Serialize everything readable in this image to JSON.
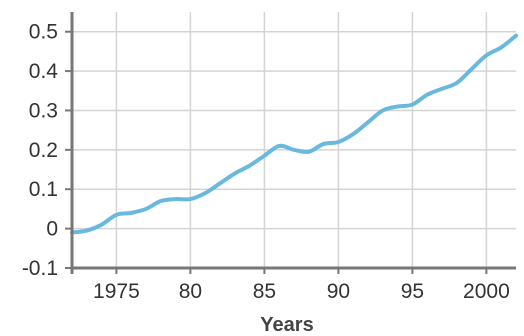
{
  "chart_data": {
    "type": "line",
    "title": "",
    "xlabel": "Years",
    "ylabel": "",
    "xlim": [
      1972,
      2002
    ],
    "ylim": [
      -0.1,
      0.55
    ],
    "grid": true,
    "x_ticks": [
      {
        "value": 1975,
        "label": "1975"
      },
      {
        "value": 1980,
        "label": "80"
      },
      {
        "value": 1985,
        "label": "85"
      },
      {
        "value": 1990,
        "label": "90"
      },
      {
        "value": 1995,
        "label": "95"
      },
      {
        "value": 2000,
        "label": "2000"
      }
    ],
    "y_ticks": [
      {
        "value": -0.1,
        "label": "-0.1"
      },
      {
        "value": 0,
        "label": "0"
      },
      {
        "value": 0.1,
        "label": "0.1"
      },
      {
        "value": 0.2,
        "label": "0.2"
      },
      {
        "value": 0.3,
        "label": "0.3"
      },
      {
        "value": 0.4,
        "label": "0.4"
      },
      {
        "value": 0.5,
        "label": "0.5"
      }
    ],
    "series": [
      {
        "color": "#69b8df",
        "x": [
          1972,
          1973,
          1974,
          1975,
          1976,
          1977,
          1978,
          1979,
          1980,
          1981,
          1982,
          1983,
          1984,
          1985,
          1986,
          1987,
          1988,
          1989,
          1990,
          1991,
          1992,
          1993,
          1994,
          1995,
          1996,
          1997,
          1998,
          1999,
          2000,
          2001,
          2002
        ],
        "y": [
          -0.01,
          -0.005,
          0.01,
          0.035,
          0.04,
          0.05,
          0.07,
          0.075,
          0.075,
          0.09,
          0.115,
          0.14,
          0.16,
          0.185,
          0.21,
          0.2,
          0.195,
          0.215,
          0.22,
          0.24,
          0.27,
          0.3,
          0.31,
          0.315,
          0.34,
          0.355,
          0.37,
          0.405,
          0.44,
          0.46,
          0.49
        ]
      }
    ]
  }
}
